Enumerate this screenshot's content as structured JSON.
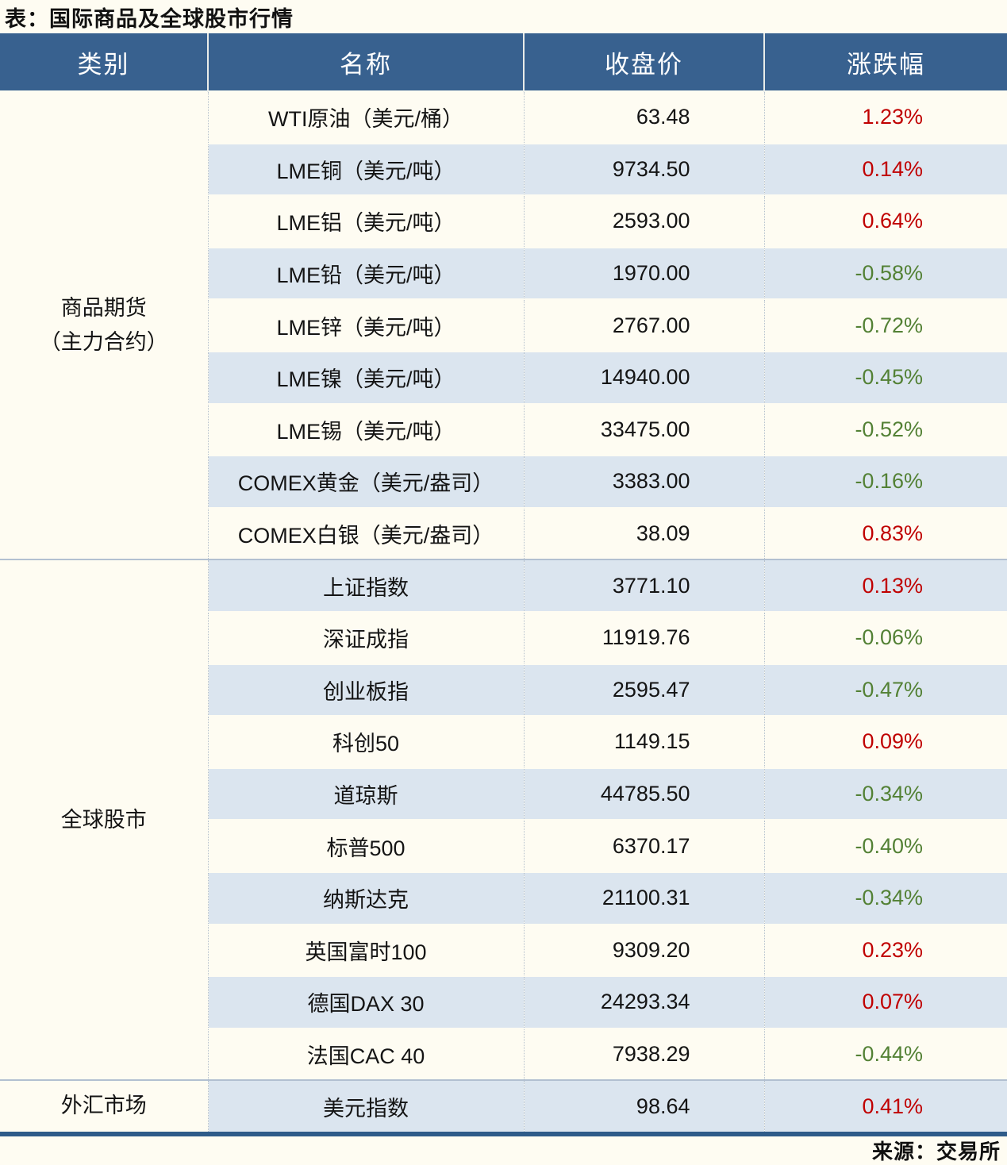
{
  "title": "表：国际商品及全球股市行情",
  "source": "来源：交易所",
  "colors": {
    "header_bg": "#38618f",
    "header_text": "#ffffff",
    "row_stripe_blue": "#dbe5ef",
    "row_plain": "#fefcf2",
    "gain_red": "#c00000",
    "loss_green": "#538135",
    "bottom_border": "#2e5b89",
    "group_divider": "#b2c0d1"
  },
  "table": {
    "headers": [
      "类别",
      "名称",
      "收盘价",
      "涨跌幅"
    ],
    "groups": [
      {
        "category_lines": [
          "商品期货",
          "（主力合约）"
        ],
        "rows": [
          {
            "name": "WTI原油（美元/桶）",
            "close": "63.48",
            "change": "1.23%"
          },
          {
            "name": "LME铜（美元/吨）",
            "close": "9734.50",
            "change": "0.14%"
          },
          {
            "name": "LME铝（美元/吨）",
            "close": "2593.00",
            "change": "0.64%"
          },
          {
            "name": "LME铅（美元/吨）",
            "close": "1970.00",
            "change": "-0.58%"
          },
          {
            "name": "LME锌（美元/吨）",
            "close": "2767.00",
            "change": "-0.72%"
          },
          {
            "name": "LME镍（美元/吨）",
            "close": "14940.00",
            "change": "-0.45%"
          },
          {
            "name": "LME锡（美元/吨）",
            "close": "33475.00",
            "change": "-0.52%"
          },
          {
            "name": "COMEX黄金（美元/盎司）",
            "close": "3383.00",
            "change": "-0.16%"
          },
          {
            "name": "COMEX白银（美元/盎司）",
            "close": "38.09",
            "change": "0.83%"
          }
        ]
      },
      {
        "category_lines": [
          "全球股市"
        ],
        "rows": [
          {
            "name": "上证指数",
            "close": "3771.10",
            "change": "0.13%"
          },
          {
            "name": "深证成指",
            "close": "11919.76",
            "change": "-0.06%"
          },
          {
            "name": "创业板指",
            "close": "2595.47",
            "change": "-0.47%"
          },
          {
            "name": "科创50",
            "close": "1149.15",
            "change": "0.09%"
          },
          {
            "name": "道琼斯",
            "close": "44785.50",
            "change": "-0.34%"
          },
          {
            "name": "标普500",
            "close": "6370.17",
            "change": "-0.40%"
          },
          {
            "name": "纳斯达克",
            "close": "21100.31",
            "change": "-0.34%"
          },
          {
            "name": "英国富时100",
            "close": "9309.20",
            "change": "0.23%"
          },
          {
            "name": "德国DAX 30",
            "close": "24293.34",
            "change": "0.07%"
          },
          {
            "name": "法国CAC 40",
            "close": "7938.29",
            "change": "-0.44%"
          }
        ]
      },
      {
        "category_lines": [
          "外汇市场"
        ],
        "rows": [
          {
            "name": "美元指数",
            "close": "98.64",
            "change": "0.41%"
          }
        ]
      }
    ]
  }
}
